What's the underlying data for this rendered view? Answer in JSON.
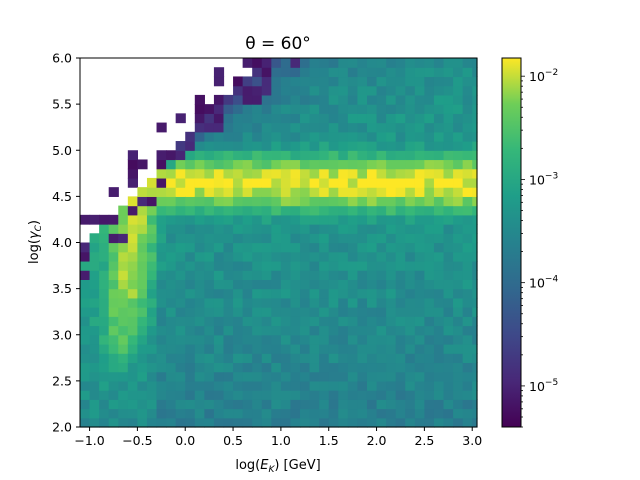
{
  "chart_data": {
    "type": "heatmap",
    "title": "θ = 60°",
    "xlabel": "log(E_K) [GeV]",
    "ylabel": "log(γ_C)",
    "xlim": [
      -1.1,
      3.05
    ],
    "ylim": [
      2.0,
      6.0
    ],
    "x_ticks": [
      "−1.0",
      "−0.5",
      "0.0",
      "0.5",
      "1.0",
      "1.5",
      "2.0",
      "2.5",
      "3.0"
    ],
    "y_ticks": [
      "2.0",
      "2.5",
      "3.0",
      "3.5",
      "4.0",
      "4.5",
      "5.0",
      "5.5",
      "6.0"
    ],
    "colorbar": {
      "scale": "log",
      "colormap": "viridis",
      "range": [
        4e-06,
        0.015
      ],
      "tick_labels": [
        {
          "base": "10",
          "exp": "−2",
          "value": 0.01
        },
        {
          "base": "10",
          "exp": "−3",
          "value": 0.001
        },
        {
          "base": "10",
          "exp": "−4",
          "value": 0.0001
        },
        {
          "base": "10",
          "exp": "−5",
          "value": 1e-05
        }
      ]
    },
    "features": {
      "ridge_level_log_gamma": 4.65,
      "ridge_value": 0.012,
      "low_energy_band_value": 0.01,
      "background_value": 0.0003,
      "empty_region": "upper-left"
    }
  }
}
